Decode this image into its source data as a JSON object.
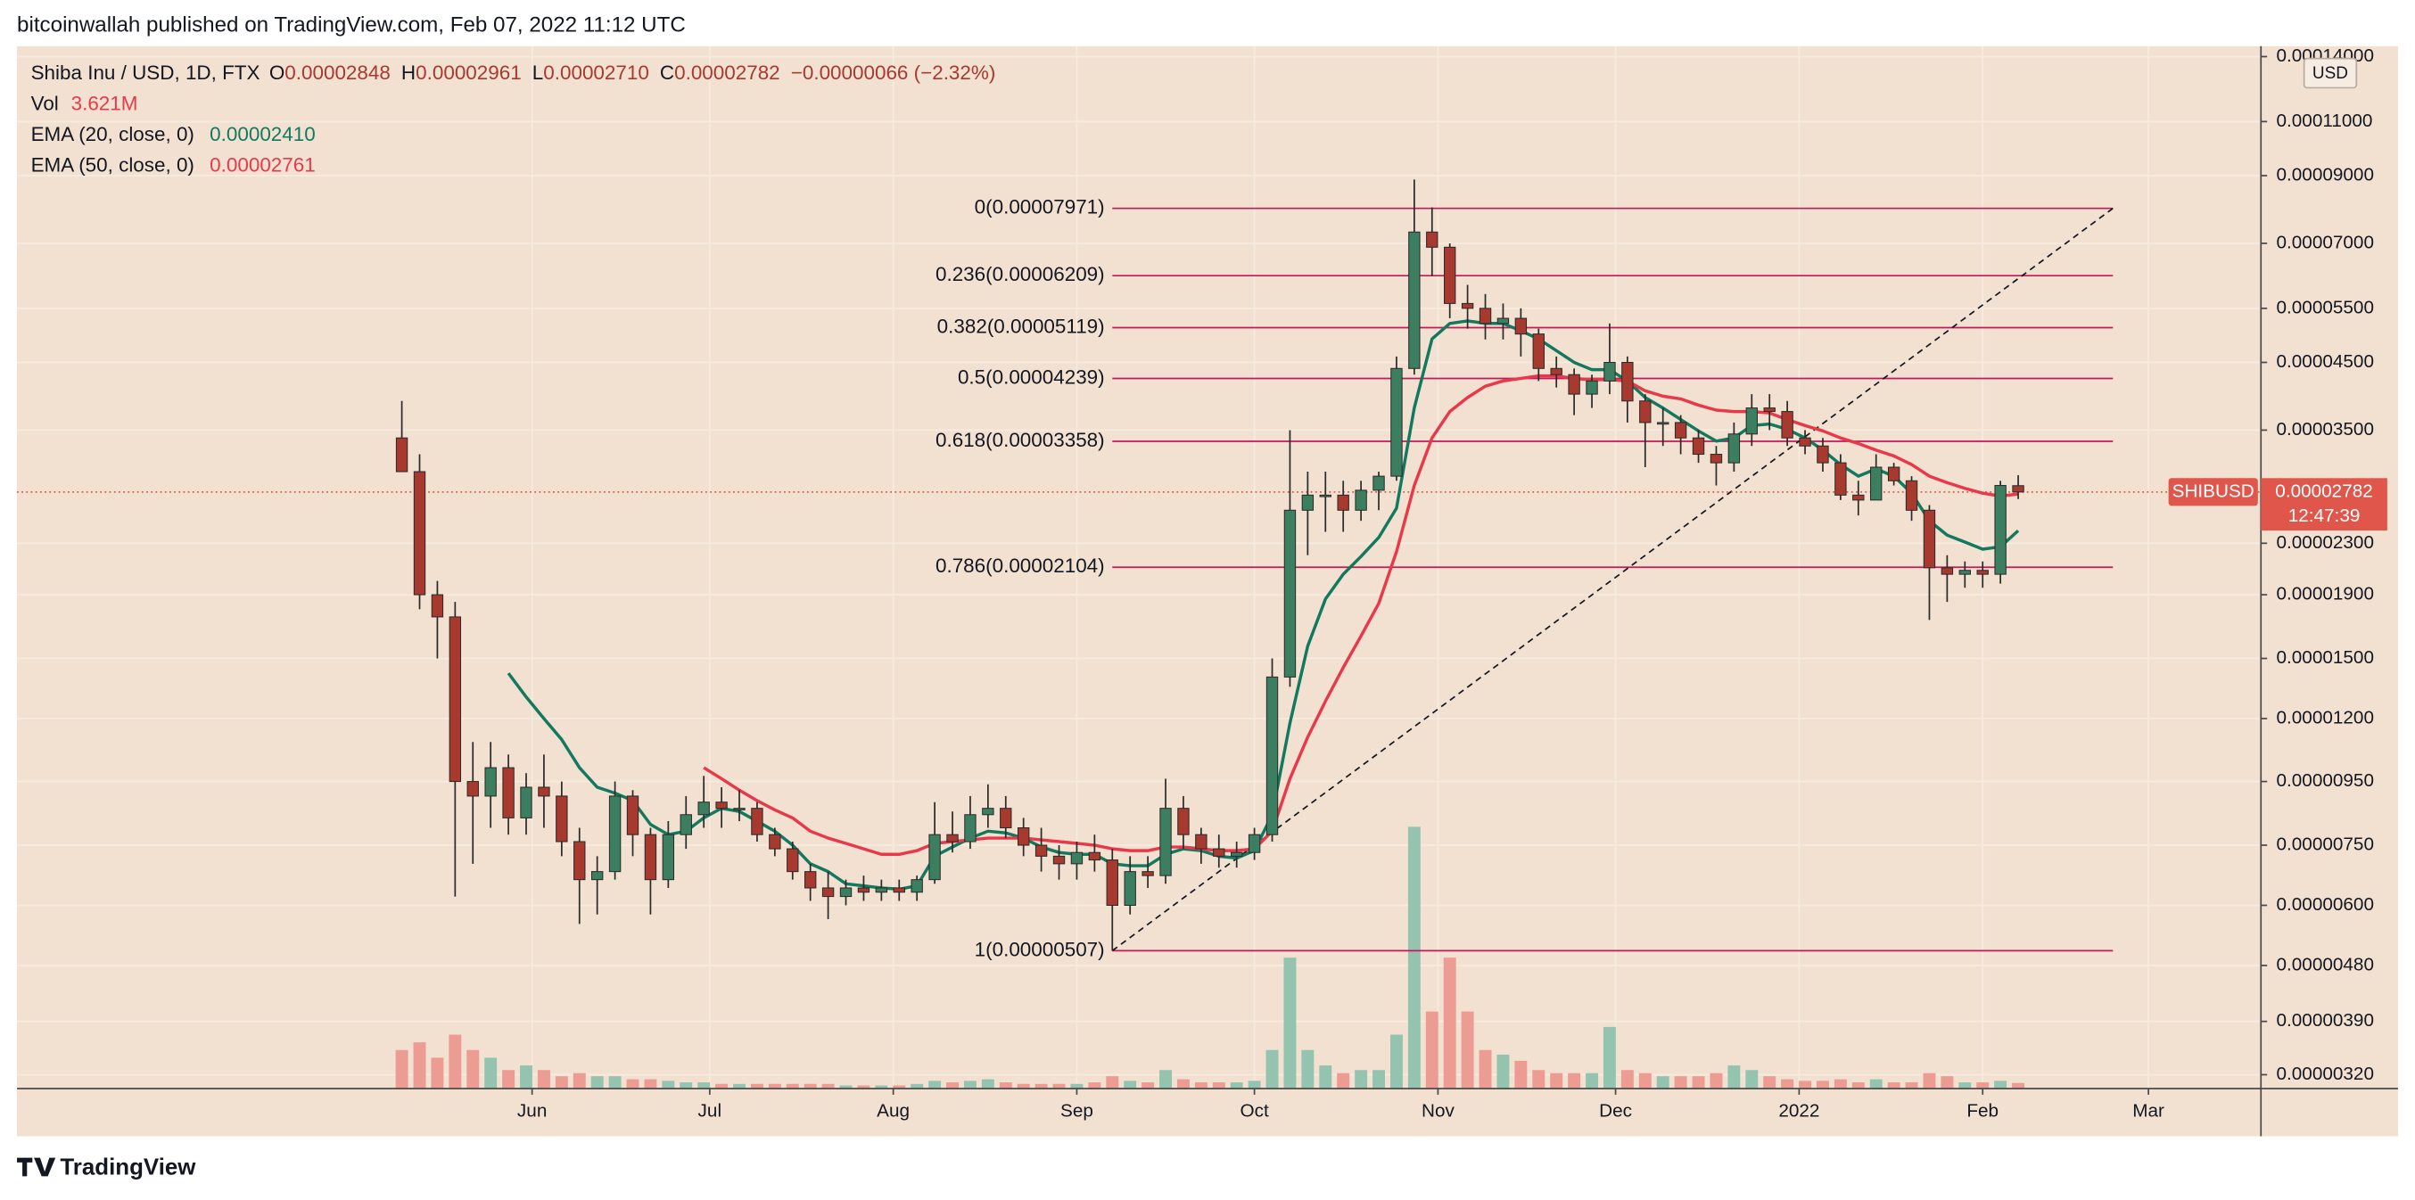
{
  "header": {
    "publisher": "bitcoinwallah published on TradingView.com, Feb 07, 2022 11:12 UTC"
  },
  "footer": {
    "brand": "TradingView"
  },
  "chart_data": {
    "type": "candlestick",
    "symbol": "Shiba Inu / USD, 1D, FTX",
    "ohlc": [
      {
        "key": "O",
        "value": "0.00002848"
      },
      {
        "key": "H",
        "value": "0.00002961"
      },
      {
        "key": "L",
        "value": "0.00002710"
      },
      {
        "key": "C",
        "value": "0.00002782"
      }
    ],
    "change": "−0.00000066 (−2.32%)",
    "volume_name": "Vol",
    "volume_value_label": "3.621M",
    "currency": "USD",
    "ticker": "SHIBUSD",
    "last_price": 2.782e-05,
    "last_price_label": "0.00002782",
    "countdown": "12:47:39",
    "log_scale": true,
    "grid": true,
    "up_color": "#3c7f60",
    "down_color": "#a8392f",
    "volume_up_color": "#94c4b0",
    "volume_down_color": "#ec9c92",
    "price_line_color": "#e0564a",
    "x": [
      9,
      12,
      15,
      18,
      21,
      24,
      27,
      30,
      33,
      36,
      39,
      42,
      45,
      48,
      51,
      54,
      57,
      60,
      63,
      66,
      69,
      72,
      75,
      78,
      81,
      84,
      87,
      90,
      93,
      96,
      99,
      102,
      105,
      108,
      111,
      114,
      117,
      120,
      123,
      126,
      129,
      132,
      135,
      138,
      141,
      144,
      147,
      150,
      153,
      156,
      159,
      162,
      165,
      168,
      171,
      174,
      177,
      180,
      183,
      186,
      189,
      192,
      195,
      198,
      201,
      204,
      207,
      210,
      213,
      216,
      219,
      222,
      225,
      228,
      231,
      234,
      237,
      240,
      243,
      246,
      249,
      252,
      255,
      258,
      261,
      264,
      267,
      270,
      273,
      276,
      279,
      282
    ],
    "open": [
      3.4e-05,
      3e-05,
      1.9e-05,
      1.75e-05,
      9.5e-06,
      9e-06,
      1e-05,
      8.3e-06,
      9.3e-06,
      9e-06,
      7.6e-06,
      6.6e-06,
      6.8e-06,
      9e-06,
      7.8e-06,
      6.6e-06,
      7.8e-06,
      8.4e-06,
      8.8e-06,
      8.6e-06,
      8.6e-06,
      7.8e-06,
      7.4e-06,
      6.8e-06,
      6.4e-06,
      6.2e-06,
      6.4e-06,
      6.3e-06,
      6.4e-06,
      6.3e-06,
      6.6e-06,
      7.8e-06,
      7.6e-06,
      8.4e-06,
      8.6e-06,
      8e-06,
      7.5e-06,
      7.2e-06,
      7e-06,
      7.3e-06,
      7.1e-06,
      6e-06,
      6.8e-06,
      6.7e-06,
      8.6e-06,
      7.8e-06,
      7.4e-06,
      7.2e-06,
      7.3e-06,
      7.8e-06,
      1.4e-05,
      2.6e-05,
      2.75e-05,
      2.75e-05,
      2.6e-05,
      2.8e-05,
      2.95e-05,
      4.4e-05,
      7.3e-05,
      6.9e-05,
      5.6e-05,
      5.5e-05,
      5.2e-05,
      5.3e-05,
      5e-05,
      4.4e-05,
      4.3e-05,
      4e-05,
      4.2e-05,
      4.5e-05,
      3.9e-05,
      3.6e-05,
      3.6e-05,
      3.4e-05,
      3.2e-05,
      3.1e-05,
      3.45e-05,
      3.8e-05,
      3.75e-05,
      3.4e-05,
      3.3e-05,
      3.1e-05,
      2.75e-05,
      2.7e-05,
      3.05e-05,
      2.9e-05,
      2.6e-05,
      2.1e-05,
      2.05e-05,
      2.08e-05,
      2.05e-05,
      2.848e-05
    ],
    "high": [
      3.9e-05,
      3.2e-05,
      2e-05,
      1.85e-05,
      1.1e-05,
      1.1e-05,
      1.05e-05,
      9.8e-06,
      1.05e-05,
      9.5e-06,
      8e-06,
      7.2e-06,
      9.5e-06,
      9.2e-06,
      8e-06,
      8.2e-06,
      9e-06,
      9.7e-06,
      9.3e-06,
      9.2e-06,
      8.8e-06,
      8e-06,
      7.6e-06,
      7e-06,
      6.8e-06,
      6.6e-06,
      6.7e-06,
      6.6e-06,
      6.6e-06,
      6.7e-06,
      8.8e-06,
      8.5e-06,
      9e-06,
      9.4e-06,
      9e-06,
      8.3e-06,
      8e-06,
      7.5e-06,
      7.6e-06,
      7.8e-06,
      7.4e-06,
      7.2e-06,
      7.2e-06,
      9.6e-06,
      9e-06,
      8e-06,
      7.8e-06,
      7.6e-06,
      8e-06,
      1.5e-05,
      3.5e-05,
      3e-05,
      3e-05,
      2.9e-05,
      2.9e-05,
      3e-05,
      4.6e-05,
      8.87e-05,
      8e-05,
      7e-05,
      6e-05,
      5.8e-05,
      5.6e-05,
      5.5e-05,
      5.1e-05,
      4.6e-05,
      4.4e-05,
      4.3e-05,
      5.2e-05,
      4.6e-05,
      4e-05,
      3.8e-05,
      3.7e-05,
      3.5e-05,
      3.3e-05,
      3.6e-05,
      4e-05,
      4e-05,
      3.9e-05,
      3.5e-05,
      3.4e-05,
      3.2e-05,
      2.9e-05,
      3.2e-05,
      3.1e-05,
      2.95e-05,
      2.65e-05,
      2.2e-05,
      2.15e-05,
      2.15e-05,
      2.9e-05,
      2.961e-05
    ],
    "low": [
      3e-05,
      1.8e-05,
      1.5e-05,
      6.2e-06,
      7e-06,
      8e-06,
      7.8e-06,
      7.8e-06,
      8e-06,
      7.2e-06,
      5.6e-06,
      5.8e-06,
      6.6e-06,
      7.2e-06,
      5.8e-06,
      6.4e-06,
      7.4e-06,
      8e-06,
      8e-06,
      8.2e-06,
      7.6e-06,
      7.2e-06,
      6.6e-06,
      6.1e-06,
      5.7e-06,
      6e-06,
      6.1e-06,
      6.1e-06,
      6.1e-06,
      6.1e-06,
      6.5e-06,
      7.3e-06,
      7.4e-06,
      8e-06,
      7.7e-06,
      7.2e-06,
      6.8e-06,
      6.6e-06,
      6.6e-06,
      6.8e-06,
      5.07e-06,
      5.8e-06,
      6.4e-06,
      6.5e-06,
      7.4e-06,
      7e-06,
      6.9e-06,
      6.9e-06,
      7.1e-06,
      7.6e-06,
      1.35e-05,
      2.2e-05,
      2.4e-05,
      2.4e-05,
      2.5e-05,
      2.6e-05,
      2.9e-05,
      4.3e-05,
      6.2e-05,
      5.3e-05,
      5.1e-05,
      4.9e-05,
      4.9e-05,
      4.6e-05,
      4.2e-05,
      4.1e-05,
      3.7e-05,
      3.8e-05,
      4e-05,
      3.6e-05,
      3.05e-05,
      3.3e-05,
      3.2e-05,
      3.1e-05,
      2.85e-05,
      3e-05,
      3.3e-05,
      3.5e-05,
      3.3e-05,
      3.2e-05,
      3e-05,
      2.7e-05,
      2.55e-05,
      2.7e-05,
      2.85e-05,
      2.5e-05,
      1.73e-05,
      1.85e-05,
      1.95e-05,
      1.95e-05,
      1.98e-05,
      2.71e-05
    ],
    "close": [
      3e-05,
      1.9e-05,
      1.75e-05,
      9.5e-06,
      9e-06,
      1e-05,
      8.3e-06,
      9.3e-06,
      9e-06,
      7.6e-06,
      6.6e-06,
      6.8e-06,
      9e-06,
      7.8e-06,
      6.6e-06,
      7.8e-06,
      8.4e-06,
      8.8e-06,
      8.6e-06,
      8.6e-06,
      7.8e-06,
      7.4e-06,
      6.8e-06,
      6.4e-06,
      6.2e-06,
      6.4e-06,
      6.3e-06,
      6.4e-06,
      6.3e-06,
      6.6e-06,
      7.8e-06,
      7.6e-06,
      8.4e-06,
      8.6e-06,
      8e-06,
      7.5e-06,
      7.2e-06,
      7e-06,
      7.3e-06,
      7.1e-06,
      6e-06,
      6.8e-06,
      6.7e-06,
      8.6e-06,
      7.8e-06,
      7.4e-06,
      7.2e-06,
      7.3e-06,
      7.8e-06,
      1.4e-05,
      2.6e-05,
      2.75e-05,
      2.75e-05,
      2.6e-05,
      2.8e-05,
      2.95e-05,
      4.4e-05,
      7.3e-05,
      6.9e-05,
      5.6e-05,
      5.5e-05,
      5.2e-05,
      5.3e-05,
      5e-05,
      4.4e-05,
      4.3e-05,
      4e-05,
      4.2e-05,
      4.5e-05,
      3.9e-05,
      3.6e-05,
      3.6e-05,
      3.4e-05,
      3.2e-05,
      3.1e-05,
      3.45e-05,
      3.8e-05,
      3.75e-05,
      3.4e-05,
      3.3e-05,
      3.1e-05,
      2.75e-05,
      2.7e-05,
      3.05e-05,
      2.9e-05,
      2.6e-05,
      2.1e-05,
      2.05e-05,
      2.08e-05,
      2.05e-05,
      2.85e-05,
      2.782e-05
    ],
    "volume": [
      25,
      30,
      20,
      35,
      25,
      20,
      12,
      15,
      12,
      8,
      10,
      8,
      8,
      6,
      6,
      5,
      4,
      4,
      3,
      3,
      3,
      3,
      3,
      3,
      3,
      2,
      2,
      2,
      2,
      3,
      5,
      4,
      5,
      6,
      4,
      3,
      3,
      3,
      3,
      4,
      8,
      5,
      4,
      12,
      6,
      4,
      4,
      4,
      5,
      25,
      85,
      25,
      15,
      10,
      12,
      12,
      35,
      170,
      50,
      85,
      50,
      25,
      22,
      18,
      12,
      10,
      10,
      10,
      40,
      12,
      10,
      8,
      8,
      8,
      10,
      15,
      12,
      8,
      6,
      5,
      5,
      6,
      4,
      6,
      4,
      4,
      10,
      8,
      4,
      4,
      5,
      3.621
    ],
    "indicators": [
      {
        "name": "EMA (20, close, 0)",
        "value_label": "0.00002410",
        "color": "#12795f",
        "values": [
          null,
          null,
          null,
          null,
          null,
          null,
          1.42e-05,
          1.3e-05,
          1.2e-05,
          1.11e-05,
          1e-05,
          9.3e-06,
          9.1e-06,
          8.85e-06,
          8.1e-06,
          7.8e-06,
          7.9e-06,
          8.3e-06,
          8.6e-06,
          8.5e-06,
          8.2e-06,
          7.9e-06,
          7.5e-06,
          7e-06,
          6.8e-06,
          6.5e-06,
          6.45e-06,
          6.4e-06,
          6.37e-06,
          6.45e-06,
          7.2e-06,
          7.45e-06,
          7.7e-06,
          7.9e-06,
          7.85e-06,
          7.7e-06,
          7.45e-06,
          7.3e-06,
          7.25e-06,
          7.25e-06,
          7e-06,
          6.95e-06,
          6.95e-06,
          7.25e-06,
          7.4e-06,
          7.35e-06,
          7.2e-06,
          7.15e-06,
          7.35e-06,
          8.4e-06,
          1.18e-05,
          1.57e-05,
          1.87e-05,
          2.05e-05,
          2.19e-05,
          2.35e-05,
          2.62e-05,
          3.8e-05,
          4.91e-05,
          5.2e-05,
          5.25e-05,
          5.2e-05,
          5.2e-05,
          5.06e-05,
          4.91e-05,
          4.7e-05,
          4.5e-05,
          4.38e-05,
          4.38e-05,
          4.2e-05,
          3.95e-05,
          3.8e-05,
          3.64e-05,
          3.49e-05,
          3.36e-05,
          3.4e-05,
          3.56e-05,
          3.58e-05,
          3.51e-05,
          3.4e-05,
          3.25e-05,
          3.08e-05,
          2.95e-05,
          3.03e-05,
          2.95e-05,
          2.77e-05,
          2.5e-05,
          2.37e-05,
          2.31e-05,
          2.25e-05,
          2.27e-05,
          2.41e-05
        ]
      },
      {
        "name": "EMA (50, close, 0)",
        "value_label": "0.00002761",
        "color": "#e8394b",
        "values": [
          null,
          null,
          null,
          null,
          null,
          null,
          null,
          null,
          null,
          null,
          null,
          null,
          null,
          null,
          null,
          null,
          null,
          1e-05,
          9.6e-06,
          9.2e-06,
          8.85e-06,
          8.55e-06,
          8.3e-06,
          7.9e-06,
          7.7e-06,
          7.55e-06,
          7.4e-06,
          7.25e-06,
          7.25e-06,
          7.35e-06,
          7.55e-06,
          7.6e-06,
          7.65e-06,
          7.7e-06,
          7.7e-06,
          7.7e-06,
          7.65e-06,
          7.6e-06,
          7.55e-06,
          7.5e-06,
          7.4e-06,
          7.35e-06,
          7.35e-06,
          7.45e-06,
          7.45e-06,
          7.4e-06,
          7.35e-06,
          7.35e-06,
          7.4e-06,
          7.9e-06,
          9.6e-06,
          1.12e-05,
          1.28e-05,
          1.45e-05,
          1.63e-05,
          1.84e-05,
          2.23e-05,
          2.85e-05,
          3.4e-05,
          3.75e-05,
          3.95e-05,
          4.12e-05,
          4.2e-05,
          4.24e-05,
          4.28e-05,
          4.28e-05,
          4.24e-05,
          4.22e-05,
          4.22e-05,
          4.2e-05,
          4.05e-05,
          3.97e-05,
          3.93e-05,
          3.84e-05,
          3.77e-05,
          3.75e-05,
          3.75e-05,
          3.73e-05,
          3.64e-05,
          3.56e-05,
          3.49e-05,
          3.4e-05,
          3.33e-05,
          3.25e-05,
          3.18e-05,
          3.08e-05,
          2.95e-05,
          2.88e-05,
          2.82e-05,
          2.77e-05,
          2.74e-05,
          2.761e-05
        ]
      }
    ],
    "fib_color": "#c3185a",
    "fib_x": [
      129,
      298
    ],
    "fib_levels": [
      {
        "label": "0(0.00007971)",
        "value": 7.971e-05
      },
      {
        "label": "0.236(0.00006209)",
        "value": 6.209e-05
      },
      {
        "label": "0.382(0.00005119)",
        "value": 5.119e-05
      },
      {
        "label": "0.5(0.00004239)",
        "value": 4.239e-05
      },
      {
        "label": "0.618(0.00003358)",
        "value": 3.358e-05
      },
      {
        "label": "0.786(0.00002104)",
        "value": 2.104e-05
      },
      {
        "label": "1(0.00000507)",
        "value": 5.07e-06
      }
    ],
    "trend_line": {
      "x": [
        129,
        298
      ],
      "values": [
        5.07e-06,
        7.971e-05
      ]
    },
    "xlim": [
      -56,
      323
    ],
    "xticks": [
      {
        "value": 31,
        "label": "Jun"
      },
      {
        "value": 61,
        "label": "Jul"
      },
      {
        "value": 92,
        "label": "Aug"
      },
      {
        "value": 123,
        "label": "Sep"
      },
      {
        "value": 153,
        "label": "Oct"
      },
      {
        "value": 184,
        "label": "Nov"
      },
      {
        "value": 214,
        "label": "Dec"
      },
      {
        "value": 245,
        "label": "2022"
      },
      {
        "value": 276,
        "label": "Feb"
      },
      {
        "value": 304,
        "label": "Mar"
      }
    ],
    "ylim": [
      3.04e-06,
      0.0001455
    ],
    "yticks": [
      {
        "value": 0.00014,
        "label": "0.00014000"
      },
      {
        "value": 0.00011,
        "label": "0.00011000"
      },
      {
        "value": 9e-05,
        "label": "0.00009000"
      },
      {
        "value": 7e-05,
        "label": "0.00007000"
      },
      {
        "value": 5.5e-05,
        "label": "0.00005500"
      },
      {
        "value": 4.5e-05,
        "label": "0.00004500"
      },
      {
        "value": 3.5e-05,
        "label": "0.00003500"
      },
      {
        "value": 2.3e-05,
        "label": "0.00002300"
      },
      {
        "value": 1.9e-05,
        "label": "0.00001900"
      },
      {
        "value": 1.5e-05,
        "label": "0.00001500"
      },
      {
        "value": 1.2e-05,
        "label": "0.00001200"
      },
      {
        "value": 9.5e-06,
        "label": "0.00000950"
      },
      {
        "value": 7.5e-06,
        "label": "0.00000750"
      },
      {
        "value": 6e-06,
        "label": "0.00000600"
      },
      {
        "value": 4.8e-06,
        "label": "0.00000480"
      },
      {
        "value": 3.9e-06,
        "label": "0.00000390"
      },
      {
        "value": 3.2e-06,
        "label": "0.00000320"
      }
    ]
  }
}
